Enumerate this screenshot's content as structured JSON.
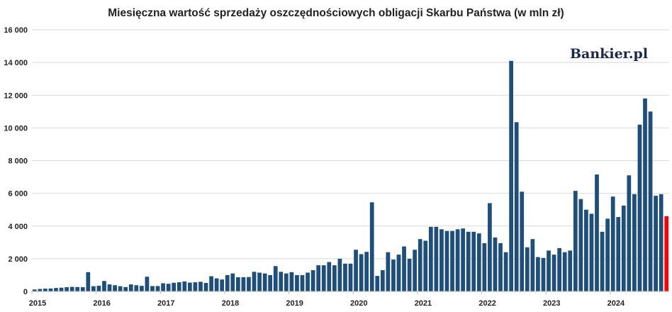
{
  "colors": {
    "bar": "#1f4e79",
    "highlight": "#ff0000",
    "grid": "#d9d9d9"
  },
  "logo": {
    "text": "Bankier.pl"
  },
  "chart_data": {
    "type": "bar",
    "title": "Miesięczna wartość sprzedaży oszczędnościowych obligacji Skarbu Państwa (w mln zł)",
    "xlabel": "",
    "ylabel": "",
    "ylim": [
      0,
      16000
    ],
    "yticks": [
      "0",
      "2 000",
      "4 000",
      "6 000",
      "8 000",
      "10 000",
      "12 000",
      "14 000",
      "16 000"
    ],
    "ytick_values": [
      0,
      2000,
      4000,
      6000,
      8000,
      10000,
      12000,
      14000,
      16000
    ],
    "year_labels": [
      "2015",
      "2016",
      "2017",
      "2018",
      "2019",
      "2020",
      "2021",
      "2022",
      "2023",
      "2024"
    ],
    "grid": true,
    "start": "2015-01",
    "highlight_last": true,
    "values": [
      120,
      150,
      170,
      180,
      210,
      230,
      260,
      280,
      270,
      260,
      1180,
      320,
      350,
      640,
      430,
      380,
      320,
      270,
      430,
      380,
      340,
      900,
      330,
      330,
      500,
      470,
      530,
      560,
      610,
      540,
      560,
      590,
      520,
      930,
      800,
      730,
      1000,
      1100,
      870,
      870,
      880,
      1200,
      1150,
      1100,
      1000,
      1550,
      1200,
      1100,
      1180,
      1000,
      1000,
      1150,
      1300,
      1600,
      1600,
      1800,
      1600,
      2000,
      1700,
      1700,
      2550,
      2280,
      2420,
      5450,
      950,
      1300,
      2400,
      1950,
      2250,
      2750,
      2000,
      2550,
      3200,
      3100,
      3950,
      3950,
      3800,
      3700,
      3700,
      3800,
      3850,
      3650,
      3650,
      3550,
      2950,
      5400,
      3300,
      2950,
      2400,
      14100,
      10350,
      6100,
      2700,
      3200,
      2100,
      2050,
      2500,
      2250,
      2650,
      2400,
      2500,
      6150,
      5650,
      5000,
      4750,
      7150,
      3650,
      4450,
      5800,
      4550,
      5250,
      7100,
      5950,
      10200,
      11800,
      11000,
      5850,
      5950,
      4600
    ]
  }
}
